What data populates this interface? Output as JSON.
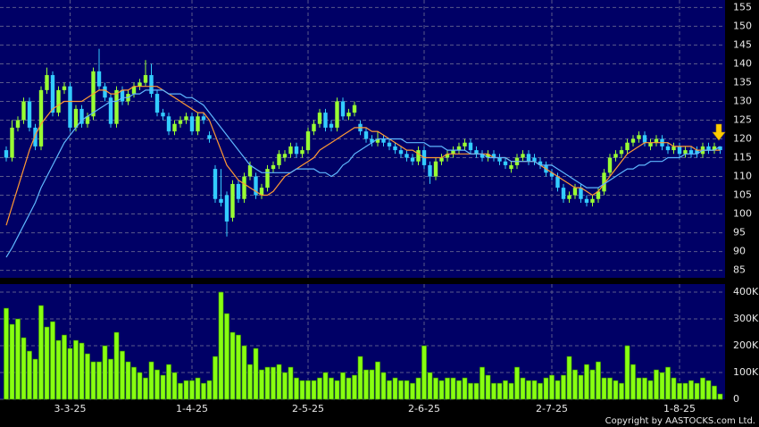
{
  "chart_data": [
    {
      "type": "candlestick",
      "categories": [
        null,
        null,
        null,
        null,
        null,
        null,
        null,
        null,
        null,
        null,
        null,
        "3-3-25",
        null,
        null,
        null,
        null,
        null,
        null,
        null,
        null,
        null,
        null,
        null,
        null,
        null,
        null,
        null,
        null,
        null,
        null,
        null,
        null,
        "1-4-25",
        null,
        null,
        null,
        null,
        null,
        null,
        null,
        null,
        null,
        null,
        null,
        null,
        null,
        null,
        null,
        null,
        null,
        null,
        null,
        "2-5-25",
        null,
        null,
        null,
        null,
        null,
        null,
        null,
        null,
        null,
        null,
        null,
        null,
        null,
        null,
        null,
        null,
        null,
        null,
        null,
        "2-6-25",
        null,
        null,
        null,
        null,
        null,
        null,
        null,
        null,
        null,
        null,
        null,
        null,
        null,
        null,
        null,
        null,
        null,
        null,
        null,
        null,
        null,
        "2-7-25",
        null,
        null,
        null,
        null,
        null,
        null,
        null,
        null,
        null,
        null,
        null,
        null,
        null,
        null,
        null,
        null,
        null,
        null,
        null,
        null,
        null,
        "1-8-25",
        null,
        null,
        null,
        null,
        null,
        null,
        null
      ],
      "ohlc": [
        [
          117,
          118,
          114,
          115
        ],
        [
          115,
          125,
          114,
          123
        ],
        [
          123,
          126,
          122,
          125
        ],
        [
          125,
          131,
          124,
          130
        ],
        [
          130,
          131,
          122,
          123
        ],
        [
          123,
          124,
          117,
          118
        ],
        [
          118,
          134,
          117,
          133
        ],
        [
          133,
          139,
          132,
          137
        ],
        [
          137,
          138,
          126,
          127
        ],
        [
          127,
          134,
          126,
          133
        ],
        [
          133,
          135,
          132,
          134
        ],
        [
          134,
          135,
          122,
          123
        ],
        [
          123,
          129,
          122,
          128
        ],
        [
          128,
          129,
          123,
          124
        ],
        [
          124,
          127,
          123,
          126
        ],
        [
          126,
          139,
          125,
          138
        ],
        [
          138,
          144,
          133,
          134
        ],
        [
          134,
          135,
          130,
          131
        ],
        [
          131,
          132,
          123,
          124
        ],
        [
          124,
          134,
          123,
          133
        ],
        [
          133,
          134,
          129,
          130
        ],
        [
          130,
          133,
          129,
          132
        ],
        [
          132,
          135,
          131,
          134
        ],
        [
          134,
          136,
          133,
          135
        ],
        [
          135,
          141,
          134,
          137
        ],
        [
          137,
          140,
          131,
          132
        ],
        [
          132,
          133,
          126,
          127
        ],
        [
          127,
          128,
          125,
          126
        ],
        [
          126,
          127,
          121,
          122
        ],
        [
          122,
          125,
          121,
          124
        ],
        [
          124,
          126,
          123,
          125
        ],
        [
          125,
          127,
          124,
          126
        ],
        [
          126,
          127,
          121,
          122
        ],
        [
          122,
          127,
          121,
          126
        ],
        [
          126,
          127,
          124,
          125
        ],
        [
          121,
          122,
          119,
          120
        ],
        [
          112,
          113,
          103,
          104
        ],
        [
          104,
          112,
          102,
          103
        ],
        [
          105,
          106,
          94,
          98
        ],
        [
          99,
          109,
          98,
          108
        ],
        [
          108,
          109,
          103,
          104
        ],
        [
          104,
          111,
          103,
          110
        ],
        [
          110,
          114,
          109,
          113
        ],
        [
          110,
          111,
          104,
          105
        ],
        [
          105,
          108,
          104,
          107
        ],
        [
          107,
          113,
          106,
          112
        ],
        [
          112,
          114,
          111,
          113
        ],
        [
          113,
          117,
          112,
          116
        ],
        [
          115,
          117,
          114,
          116
        ],
        [
          116,
          119,
          115,
          118
        ],
        [
          118,
          119,
          115,
          116
        ],
        [
          116,
          118,
          115,
          117
        ],
        [
          117,
          123,
          116,
          122
        ],
        [
          122,
          125,
          121,
          124
        ],
        [
          124,
          128,
          123,
          127
        ],
        [
          127,
          128,
          122,
          123
        ],
        [
          124,
          125,
          122,
          123
        ],
        [
          123,
          131,
          122,
          130
        ],
        [
          130,
          131,
          125,
          126
        ],
        [
          126,
          128,
          125,
          127
        ],
        [
          127,
          130,
          126,
          129
        ],
        [
          124,
          125,
          121,
          122
        ],
        [
          122,
          123,
          119,
          120
        ],
        [
          120,
          121,
          118,
          119
        ],
        [
          119,
          122,
          118,
          120
        ],
        [
          120,
          121,
          118,
          119
        ],
        [
          119,
          120,
          117,
          118
        ],
        [
          118,
          119,
          116,
          117
        ],
        [
          117,
          118,
          115,
          116
        ],
        [
          116,
          117,
          114,
          115
        ],
        [
          115,
          116,
          113,
          114
        ],
        [
          114,
          118,
          113,
          117
        ],
        [
          117,
          118,
          112,
          113
        ],
        [
          113,
          114,
          108,
          110
        ],
        [
          110,
          115,
          109,
          114
        ],
        [
          114,
          116,
          113,
          115
        ],
        [
          115,
          117,
          114,
          116
        ],
        [
          116,
          118,
          115,
          117
        ],
        [
          117,
          119,
          116,
          118
        ],
        [
          118,
          120,
          117,
          119
        ],
        [
          119,
          120,
          116,
          117
        ],
        [
          117,
          118,
          115,
          116
        ],
        [
          116,
          117,
          114,
          115
        ],
        [
          115,
          117,
          114,
          116
        ],
        [
          116,
          117,
          114,
          115
        ],
        [
          115,
          116,
          113,
          114
        ],
        [
          114,
          115,
          112,
          113
        ],
        [
          112,
          114,
          111,
          113
        ],
        [
          113,
          116,
          112,
          115
        ],
        [
          115,
          117,
          114,
          116
        ],
        [
          116,
          117,
          113,
          114
        ],
        [
          115,
          116,
          113,
          114
        ],
        [
          114,
          115,
          112,
          113
        ],
        [
          113,
          114,
          110,
          111
        ],
        [
          111,
          112,
          109,
          110
        ],
        [
          110,
          111,
          106,
          107
        ],
        [
          107,
          108,
          103,
          104
        ],
        [
          104,
          106,
          103,
          105
        ],
        [
          105,
          108,
          104,
          107
        ],
        [
          107,
          108,
          103,
          104
        ],
        [
          104,
          105,
          102,
          103
        ],
        [
          103,
          105,
          102,
          104
        ],
        [
          104,
          107,
          103,
          106
        ],
        [
          106,
          112,
          105,
          111
        ],
        [
          111,
          116,
          110,
          115
        ],
        [
          115,
          117,
          114,
          116
        ],
        [
          116,
          118,
          115,
          117
        ],
        [
          117,
          120,
          116,
          119
        ],
        [
          119,
          121,
          118,
          120
        ],
        [
          120,
          122,
          119,
          121
        ],
        [
          121,
          122,
          118,
          119
        ],
        [
          118,
          120,
          117,
          119
        ],
        [
          119,
          121,
          118,
          120
        ],
        [
          120,
          121,
          117,
          118
        ],
        [
          118,
          119,
          116,
          117
        ],
        [
          117,
          119,
          116,
          118
        ],
        [
          118,
          119,
          115,
          116
        ],
        [
          116,
          118,
          115,
          117
        ],
        [
          117,
          118,
          115,
          116
        ],
        [
          117,
          118,
          115,
          116
        ],
        [
          116,
          119,
          115,
          118
        ],
        [
          118,
          119,
          116,
          117
        ],
        [
          117,
          119,
          116,
          118
        ],
        [
          118,
          118,
          116,
          117
        ]
      ],
      "up_color": "#99ff33",
      "down_color": "#33ccff",
      "series": [
        {
          "color": "#ff9933",
          "values": [
            97,
            102,
            107,
            112,
            117,
            121,
            124,
            126,
            128,
            129,
            130,
            130,
            130,
            130,
            131,
            132,
            133,
            133,
            132,
            132,
            133,
            133,
            134,
            134,
            134,
            134,
            134,
            133,
            132,
            131,
            130,
            129,
            128,
            127,
            127,
            125,
            121,
            117,
            113,
            111,
            109,
            108,
            107,
            106,
            105,
            105,
            106,
            108,
            110,
            111,
            112,
            113,
            114,
            115,
            117,
            118,
            119,
            120,
            121,
            122,
            123,
            123,
            123,
            122,
            122,
            121,
            120,
            119,
            118,
            117,
            117,
            116,
            115,
            115,
            115,
            115,
            116,
            116,
            116,
            116,
            116,
            116,
            116,
            116,
            115,
            115,
            115,
            114,
            114,
            114,
            114,
            114,
            113,
            112,
            111,
            110,
            109,
            108,
            107,
            107,
            106,
            105,
            106,
            108,
            110,
            112,
            114,
            116,
            117,
            118,
            119,
            119,
            119,
            119,
            119,
            118,
            118,
            118,
            118,
            117,
            117,
            117,
            117,
            117
          ]
        },
        {
          "color": "#5fb8ff",
          "values": [
            88.5,
            91,
            94,
            97,
            100,
            103,
            107,
            110,
            113,
            116,
            119,
            121,
            123,
            125,
            126,
            127,
            128,
            129,
            130,
            130,
            131,
            131,
            132,
            132,
            133,
            133,
            133,
            133,
            132,
            132,
            132,
            131,
            131,
            130,
            129,
            127,
            125,
            123,
            121,
            119,
            117,
            115,
            113,
            112,
            111,
            111,
            111,
            111,
            111,
            111,
            112,
            112,
            112,
            112,
            111,
            111,
            110,
            111,
            113,
            114,
            116,
            117,
            118,
            119,
            120,
            120,
            120,
            120,
            120,
            119,
            119,
            119,
            119,
            118,
            118,
            118,
            117,
            117,
            117,
            117,
            116,
            116,
            116,
            115,
            115,
            115,
            115,
            114,
            114,
            114,
            114,
            114,
            113,
            113,
            113,
            112,
            111,
            110,
            109,
            108,
            107,
            107,
            107,
            108,
            109,
            110,
            111,
            112,
            112,
            113,
            113,
            114,
            114,
            114,
            115,
            115,
            115,
            116,
            116,
            116,
            117,
            117,
            117,
            118
          ]
        }
      ],
      "ylim": [
        83,
        157
      ],
      "yticks": [
        85,
        90,
        95,
        100,
        105,
        110,
        115,
        120,
        125,
        130,
        135,
        140,
        145,
        150,
        155
      ],
      "grid": true,
      "footer": "Copyright by AASTOCKS.com Ltd."
    },
    {
      "type": "bar",
      "color": "#88ff11",
      "values": [
        340000,
        280000,
        300000,
        230000,
        180000,
        150000,
        350000,
        270000,
        290000,
        220000,
        240000,
        190000,
        220000,
        210000,
        170000,
        140000,
        140000,
        200000,
        150000,
        250000,
        180000,
        140000,
        120000,
        100000,
        80000,
        140000,
        110000,
        90000,
        130000,
        100000,
        60000,
        70000,
        70000,
        80000,
        60000,
        70000,
        160000,
        400000,
        320000,
        250000,
        240000,
        200000,
        130000,
        190000,
        110000,
        120000,
        120000,
        130000,
        100000,
        120000,
        80000,
        70000,
        70000,
        70000,
        80000,
        100000,
        80000,
        70000,
        100000,
        80000,
        90000,
        160000,
        110000,
        110000,
        140000,
        100000,
        70000,
        80000,
        70000,
        70000,
        60000,
        80000,
        200000,
        100000,
        80000,
        70000,
        80000,
        80000,
        70000,
        80000,
        60000,
        60000,
        120000,
        90000,
        60000,
        60000,
        70000,
        60000,
        120000,
        80000,
        70000,
        70000,
        60000,
        80000,
        90000,
        70000,
        90000,
        160000,
        110000,
        90000,
        130000,
        110000,
        140000,
        80000,
        80000,
        70000,
        60000,
        200000,
        130000,
        80000,
        80000,
        70000,
        110000,
        100000,
        120000,
        80000,
        60000,
        60000,
        70000,
        60000,
        80000,
        70000,
        50000,
        20000
      ],
      "ylim": [
        0,
        430000
      ],
      "yticks": [
        0,
        {
          "value": 100000,
          "label": "100K"
        },
        {
          "value": 200000,
          "label": "200K"
        },
        {
          "value": 300000,
          "label": "300K"
        },
        {
          "value": 400000,
          "label": "400K"
        }
      ],
      "grid": true
    }
  ]
}
